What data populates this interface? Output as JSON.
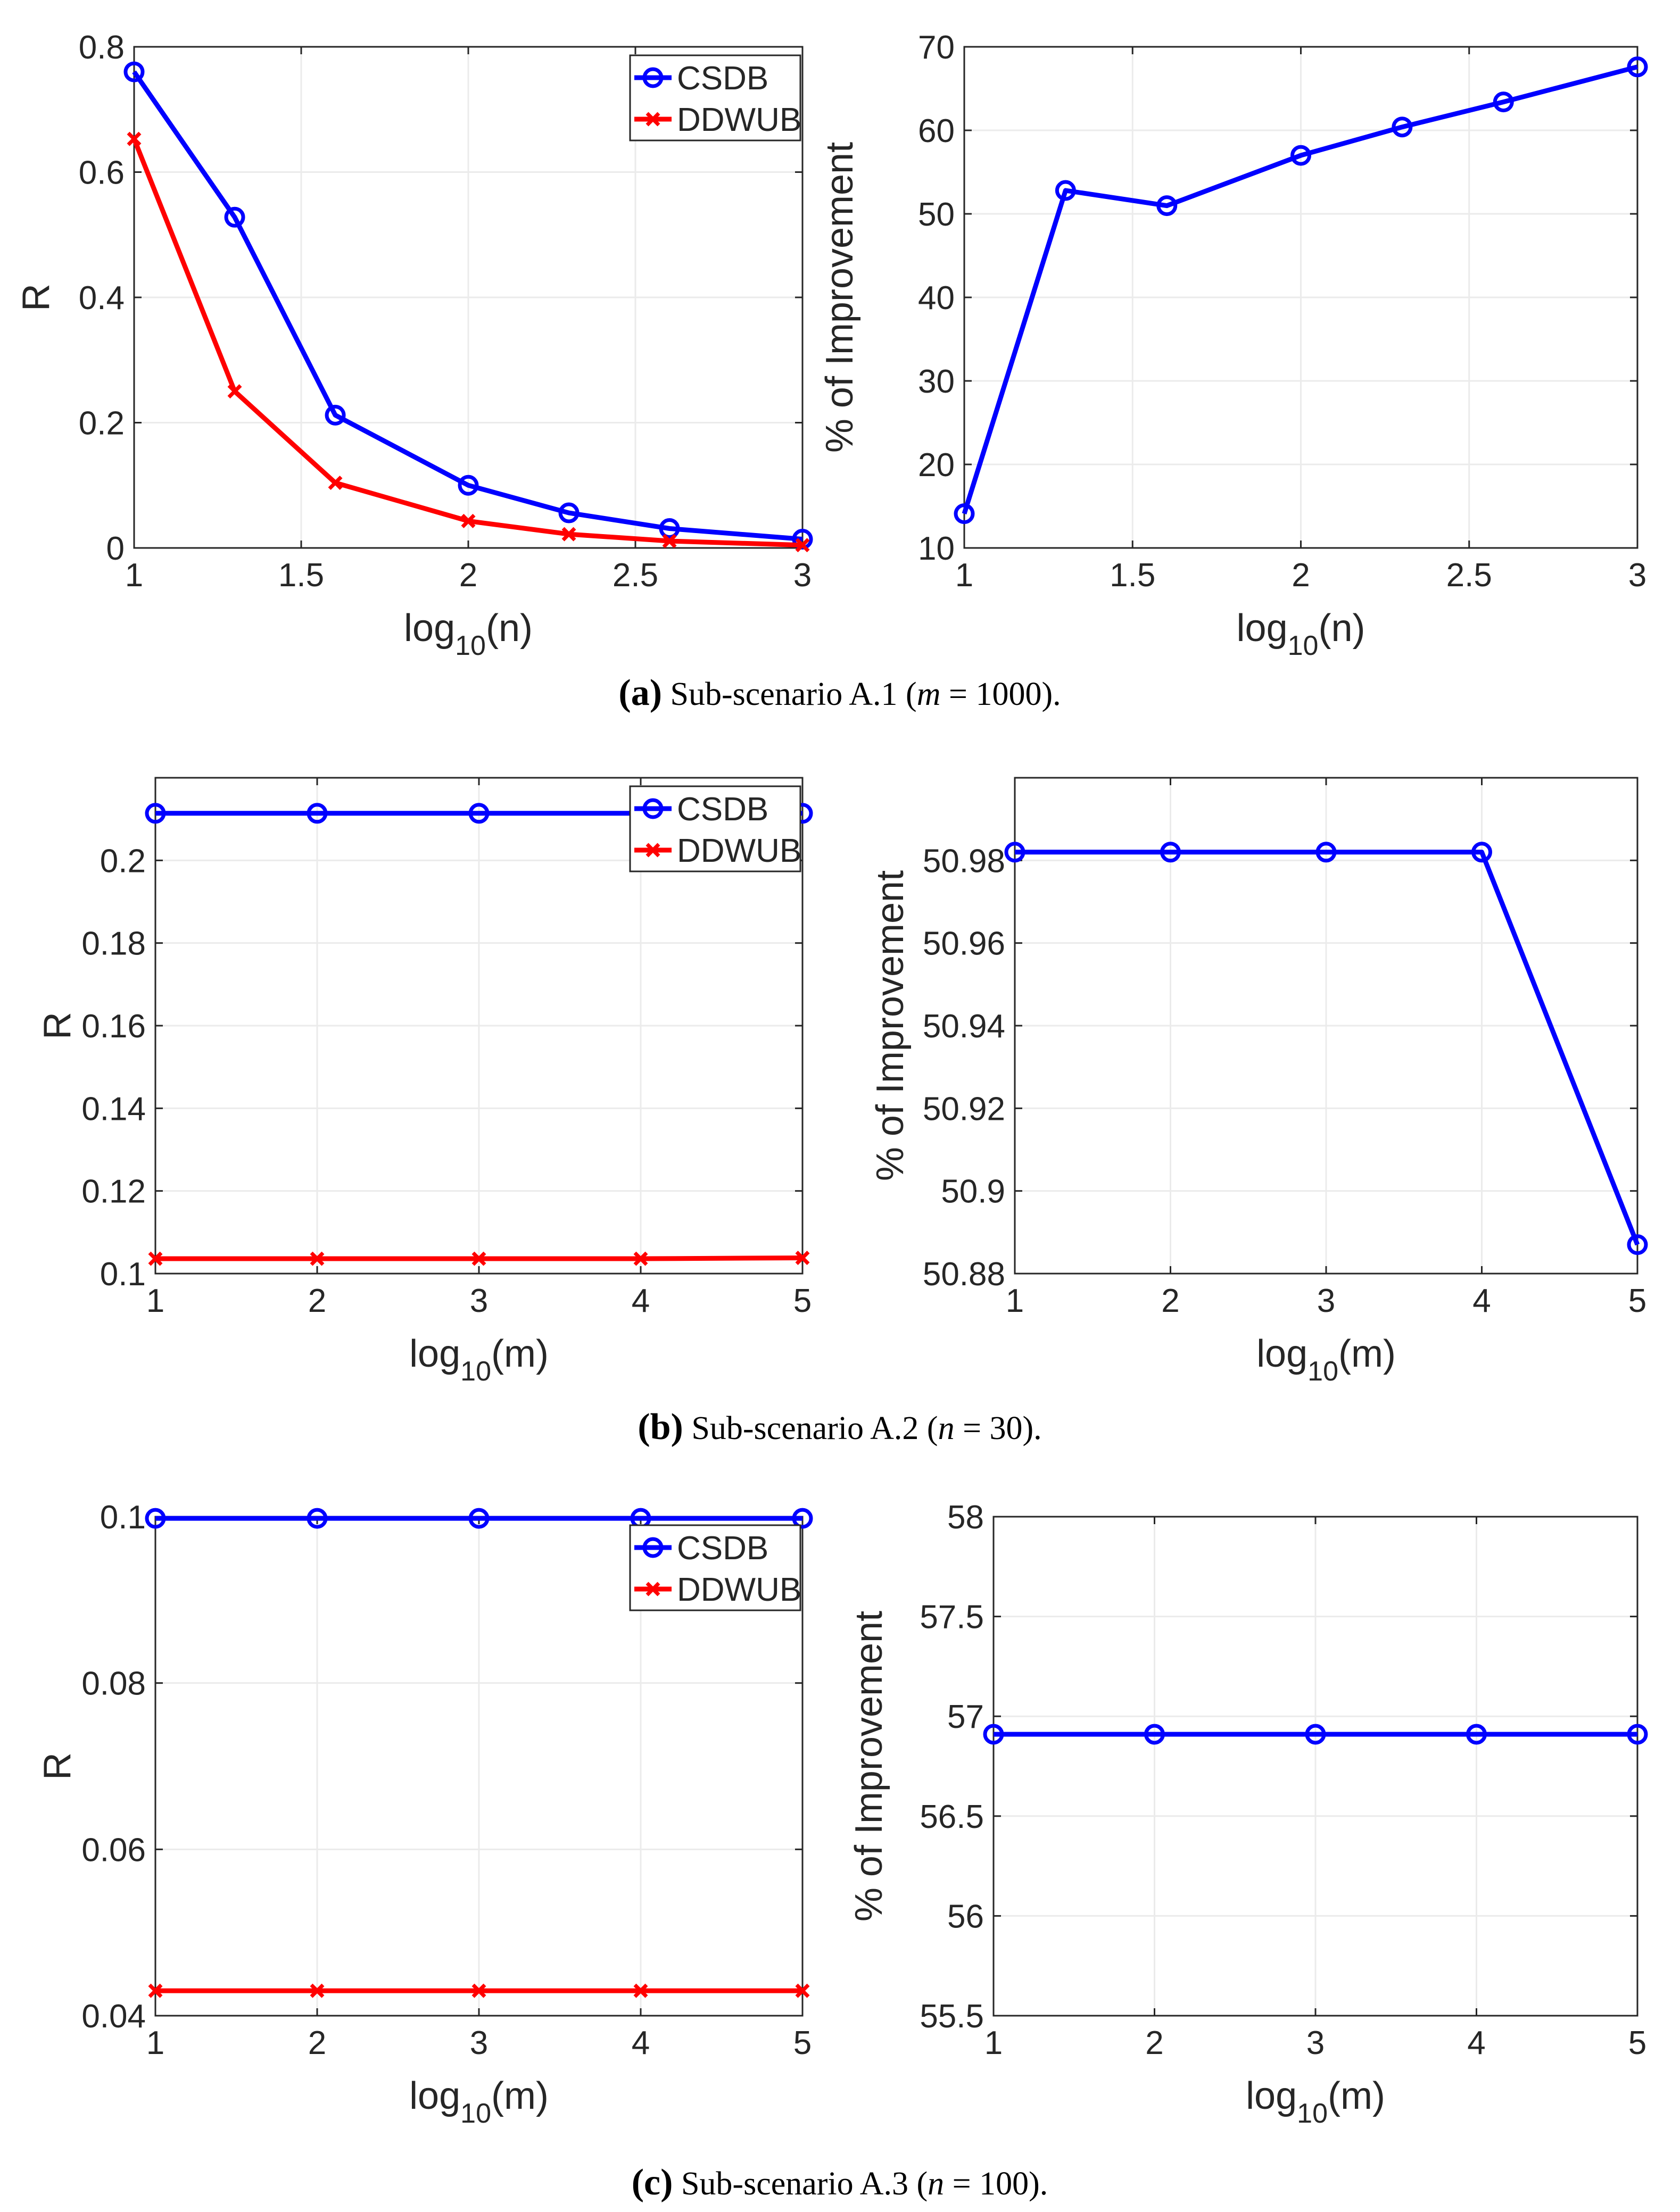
{
  "colors": {
    "csdb": "#0000ff",
    "ddwub": "#ff0000",
    "grid": "#ebebeb",
    "axis": "#262626"
  },
  "captions": [
    {
      "letter": "a",
      "text": "Sub-scenario A.1 (",
      "var": "m",
      "rest": " = 1000)."
    },
    {
      "letter": "b",
      "text": "Sub-scenario A.2 (",
      "var": "n",
      "rest": " = 30)."
    },
    {
      "letter": "c",
      "text": "Sub-scenario A.3 (",
      "var": "n",
      "rest": " = 100)."
    }
  ],
  "chart_data": [
    {
      "id": "a-left",
      "type": "line",
      "xlabel_base": "log",
      "xlabel_sub": "10",
      "xlabel_arg": "(n)",
      "ylabel": "R",
      "x": [
        1,
        1.301,
        1.602,
        2,
        2.301,
        2.602,
        3
      ],
      "xlim": [
        1,
        3
      ],
      "ylim": [
        0,
        0.8
      ],
      "xticks": [
        1,
        1.5,
        2,
        2.5,
        3
      ],
      "xticklabels": [
        "1",
        "1.5",
        "2",
        "2.5",
        "3"
      ],
      "yticks": [
        0,
        0.2,
        0.4,
        0.6,
        0.8
      ],
      "yticklabels": [
        "0",
        "0.2",
        "0.4",
        "0.6",
        "0.8"
      ],
      "legend": "top-right",
      "series": [
        {
          "name": "CSDB",
          "marker": "circle",
          "color": "#0000ff",
          "values": [
            0.76,
            0.528,
            0.212,
            0.1,
            0.056,
            0.031,
            0.014
          ]
        },
        {
          "name": "DDWUB",
          "marker": "x",
          "color": "#ff0000",
          "values": [
            0.653,
            0.25,
            0.104,
            0.043,
            0.022,
            0.011,
            0.0045
          ]
        }
      ]
    },
    {
      "id": "a-right",
      "type": "line",
      "xlabel_base": "log",
      "xlabel_sub": "10",
      "xlabel_arg": "(n)",
      "ylabel": "% of Improvement",
      "x": [
        1,
        1.301,
        1.602,
        2,
        2.301,
        2.602,
        3
      ],
      "xlim": [
        1,
        3
      ],
      "ylim": [
        10,
        70
      ],
      "xticks": [
        1,
        1.5,
        2,
        2.5,
        3
      ],
      "xticklabels": [
        "1",
        "1.5",
        "2",
        "2.5",
        "3"
      ],
      "yticks": [
        10,
        20,
        30,
        40,
        50,
        60,
        70
      ],
      "yticklabels": [
        "10",
        "20",
        "30",
        "40",
        "50",
        "60",
        "70"
      ],
      "legend": "none",
      "series": [
        {
          "name": "% of Improvement",
          "marker": "circle",
          "color": "#0000ff",
          "values": [
            14.1,
            52.8,
            50.98,
            57,
            60.4,
            63.4,
            67.6
          ]
        }
      ]
    },
    {
      "id": "b-left",
      "type": "line",
      "xlabel_base": "log",
      "xlabel_sub": "10",
      "xlabel_arg": "(m)",
      "ylabel": "R",
      "x": [
        1,
        2,
        3,
        4,
        5
      ],
      "xlim": [
        1,
        5
      ],
      "ylim": [
        0.1,
        0.22
      ],
      "xticks": [
        1,
        2,
        3,
        4,
        5
      ],
      "xticklabels": [
        "1",
        "2",
        "3",
        "4",
        "5"
      ],
      "yticks": [
        0.1,
        0.12,
        0.14,
        0.16,
        0.18,
        0.2
      ],
      "yticklabels": [
        "0.1",
        "0.12",
        "0.14",
        "0.16",
        "0.18",
        "0.2"
      ],
      "legend": "top-right",
      "series": [
        {
          "name": "CSDB",
          "marker": "circle",
          "color": "#0000ff",
          "values": [
            0.2114,
            0.2114,
            0.2114,
            0.2114,
            0.2114
          ]
        },
        {
          "name": "DDWUB",
          "marker": "x",
          "color": "#ff0000",
          "values": [
            0.1036,
            0.1036,
            0.1036,
            0.1036,
            0.1038
          ]
        }
      ]
    },
    {
      "id": "b-right",
      "type": "line",
      "xlabel_base": "log",
      "xlabel_sub": "10",
      "xlabel_arg": "(m)",
      "ylabel": "% of Improvement",
      "x": [
        1,
        2,
        3,
        4,
        5
      ],
      "xlim": [
        1,
        5
      ],
      "ylim": [
        50.88,
        51
      ],
      "xticks": [
        1,
        2,
        3,
        4,
        5
      ],
      "xticklabels": [
        "1",
        "2",
        "3",
        "4",
        "5"
      ],
      "yticks": [
        50.88,
        50.9,
        50.92,
        50.94,
        50.96,
        50.98
      ],
      "yticklabels": [
        "50.88",
        "50.9",
        "50.92",
        "50.94",
        "50.96",
        "50.98"
      ],
      "legend": "none",
      "series": [
        {
          "name": "% of Improvement",
          "marker": "circle",
          "color": "#0000ff",
          "values": [
            50.982,
            50.982,
            50.982,
            50.982,
            50.887
          ]
        }
      ]
    },
    {
      "id": "c-left",
      "type": "line",
      "xlabel_base": "log",
      "xlabel_sub": "10",
      "xlabel_arg": "(m)",
      "ylabel": "R",
      "x": [
        1,
        2,
        3,
        4,
        5
      ],
      "xlim": [
        1,
        5
      ],
      "ylim": [
        0.04,
        0.1
      ],
      "xticks": [
        1,
        2,
        3,
        4,
        5
      ],
      "xticklabels": [
        "1",
        "2",
        "3",
        "4",
        "5"
      ],
      "yticks": [
        0.04,
        0.06,
        0.08,
        0.1
      ],
      "yticklabels": [
        "0.04",
        "0.06",
        "0.08",
        "0.1"
      ],
      "legend": "top-right",
      "series": [
        {
          "name": "CSDB",
          "marker": "circle",
          "color": "#0000ff",
          "values": [
            0.0998,
            0.0998,
            0.0998,
            0.0998,
            0.0998
          ]
        },
        {
          "name": "DDWUB",
          "marker": "x",
          "color": "#ff0000",
          "values": [
            0.043,
            0.043,
            0.043,
            0.043,
            0.043
          ]
        }
      ]
    },
    {
      "id": "c-right",
      "type": "line",
      "xlabel_base": "log",
      "xlabel_sub": "10",
      "xlabel_arg": "(m)",
      "ylabel": "% of Improvement",
      "x": [
        1,
        2,
        3,
        4,
        5
      ],
      "xlim": [
        1,
        5
      ],
      "ylim": [
        55.5,
        58
      ],
      "xticks": [
        1,
        2,
        3,
        4,
        5
      ],
      "xticklabels": [
        "1",
        "2",
        "3",
        "4",
        "5"
      ],
      "yticks": [
        55.5,
        56,
        56.5,
        57,
        57.5,
        58
      ],
      "yticklabels": [
        "55.5",
        "56",
        "56.5",
        "57",
        "57.5",
        "58"
      ],
      "legend": "none",
      "series": [
        {
          "name": "% of Improvement",
          "marker": "circle",
          "color": "#0000ff",
          "values": [
            56.91,
            56.91,
            56.91,
            56.91,
            56.91
          ]
        }
      ]
    }
  ]
}
